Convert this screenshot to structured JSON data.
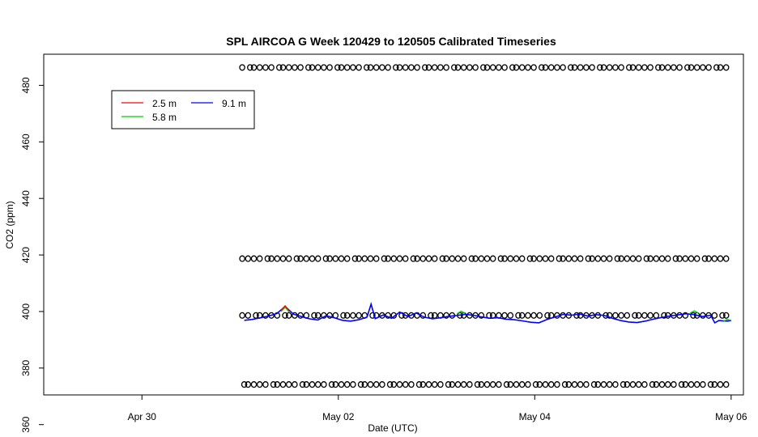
{
  "chart_data": {
    "type": "line",
    "title": "SPL AIRCOA G  Week 120429 to 120505  Calibrated Timeseries",
    "xlabel": "Date (UTC)",
    "ylabel": "CO2 (ppm)",
    "x_ticks": [
      {
        "date": "2012-04-30",
        "label": "Apr 30"
      },
      {
        "date": "2012-05-02",
        "label": "May 02"
      },
      {
        "date": "2012-05-04",
        "label": "May 04"
      },
      {
        "date": "2012-05-06",
        "label": "May 06"
      }
    ],
    "y_ticks": [
      360,
      380,
      400,
      420,
      440,
      460,
      480
    ],
    "xlim": [
      "2012-04-29T00:00",
      "2012-05-06T03:00"
    ],
    "ylim": [
      370.5,
      491
    ],
    "grid": false,
    "legend": {
      "placement": "top-left",
      "entries": [
        {
          "name": "2.5 m",
          "color": "#ff0000"
        },
        {
          "name": "5.8 m",
          "color": "#00cc00"
        },
        {
          "name": "9.1 m",
          "color": "#0000ff"
        }
      ]
    },
    "series": [
      {
        "name": "9.1 m",
        "color": "#0000ff",
        "points": [
          [
            "2012-05-01T01:00",
            396.9
          ],
          [
            "2012-05-01T03:00",
            397.2
          ],
          [
            "2012-05-01T05:00",
            397.8
          ],
          [
            "2012-05-01T07:00",
            398.4
          ],
          [
            "2012-05-01T09:00",
            399.3
          ],
          [
            "2012-05-01T11:00",
            401.8
          ],
          [
            "2012-05-01T13:00",
            399.1
          ],
          [
            "2012-05-01T15:00",
            398.2
          ],
          [
            "2012-05-01T17:00",
            397.4
          ],
          [
            "2012-05-01T19:00",
            397.0
          ],
          [
            "2012-05-01T21:00",
            398.5
          ],
          [
            "2012-05-01T23:00",
            397.8
          ],
          [
            "2012-05-02T01:00",
            396.9
          ],
          [
            "2012-05-02T03:00",
            396.6
          ],
          [
            "2012-05-02T05:00",
            397.1
          ],
          [
            "2012-05-02T07:00",
            398.0
          ],
          [
            "2012-05-02T08:00",
            402.6
          ],
          [
            "2012-05-02T09:00",
            397.5
          ],
          [
            "2012-05-02T11:00",
            398.8
          ],
          [
            "2012-05-02T13:00",
            397.6
          ],
          [
            "2012-05-02T15:00",
            399.8
          ],
          [
            "2012-05-02T17:00",
            398.2
          ],
          [
            "2012-05-02T19:00",
            399.5
          ],
          [
            "2012-05-02T21:00",
            398.0
          ],
          [
            "2012-05-02T23:00",
            397.4
          ],
          [
            "2012-05-03T01:00",
            397.8
          ],
          [
            "2012-05-03T03:00",
            398.3
          ],
          [
            "2012-05-03T05:00",
            398.6
          ],
          [
            "2012-05-03T07:00",
            399.0
          ],
          [
            "2012-05-03T09:00",
            398.7
          ],
          [
            "2012-05-03T11:00",
            398.1
          ],
          [
            "2012-05-03T13:00",
            397.6
          ],
          [
            "2012-05-03T15:00",
            397.8
          ],
          [
            "2012-05-03T17:00",
            397.3
          ],
          [
            "2012-05-03T19:00",
            397.1
          ],
          [
            "2012-05-03T21:00",
            396.7
          ],
          [
            "2012-05-03T23:00",
            396.2
          ],
          [
            "2012-05-04T01:00",
            396.0
          ],
          [
            "2012-05-04T03:00",
            397.2
          ],
          [
            "2012-05-04T05:00",
            398.1
          ],
          [
            "2012-05-04T07:00",
            399.0
          ],
          [
            "2012-05-04T09:00",
            398.7
          ],
          [
            "2012-05-04T11:00",
            399.1
          ],
          [
            "2012-05-04T13:00",
            398.4
          ],
          [
            "2012-05-04T15:00",
            398.9
          ],
          [
            "2012-05-04T17:00",
            398.6
          ],
          [
            "2012-05-04T19:00",
            397.6
          ],
          [
            "2012-05-04T21:00",
            396.8
          ],
          [
            "2012-05-04T23:00",
            396.3
          ],
          [
            "2012-05-05T01:00",
            396.1
          ],
          [
            "2012-05-05T03:00",
            396.6
          ],
          [
            "2012-05-05T05:00",
            397.3
          ],
          [
            "2012-05-05T07:00",
            397.9
          ],
          [
            "2012-05-05T09:00",
            398.4
          ],
          [
            "2012-05-05T11:00",
            398.8
          ],
          [
            "2012-05-05T13:00",
            399.2
          ],
          [
            "2012-05-05T15:00",
            398.9
          ],
          [
            "2012-05-05T17:00",
            398.2
          ],
          [
            "2012-05-05T19:00",
            398.7
          ],
          [
            "2012-05-05T20:00",
            396.0
          ],
          [
            "2012-05-05T21:00",
            396.8
          ],
          [
            "2012-05-05T23:00",
            396.6
          ],
          [
            "2012-05-06T00:00",
            396.8
          ]
        ]
      },
      {
        "name": "5.8 m",
        "color": "#00cc00",
        "points": [
          [
            "2012-05-01T10:00",
            400.0
          ],
          [
            "2012-05-01T11:00",
            401.5
          ],
          [
            "2012-05-01T12:00",
            399.8
          ],
          [
            "2012-05-03T05:00",
            399.2
          ],
          [
            "2012-05-03T06:00",
            400.1
          ],
          [
            "2012-05-03T07:00",
            399.3
          ],
          [
            "2012-05-05T14:00",
            399.5
          ],
          [
            "2012-05-05T15:00",
            400.2
          ],
          [
            "2012-05-05T16:00",
            399.4
          ],
          [
            "2012-05-05T22:00",
            396.4
          ],
          [
            "2012-05-05T23:00",
            397.2
          ],
          [
            "2012-05-06T00:00",
            396.9
          ]
        ]
      },
      {
        "name": "2.5 m",
        "color": "#ff0000",
        "points": [
          [
            "2012-05-01T10:00",
            400.5
          ],
          [
            "2012-05-01T11:00",
            402.0
          ],
          [
            "2012-05-01T12:00",
            400.2
          ]
        ]
      }
    ],
    "calibration_levels": [
      374.2,
      398.6,
      418.7,
      486.3
    ],
    "calibration_range": [
      "2012-05-01T00:30",
      "2012-05-06T00:00"
    ],
    "calibration_marker": "o"
  }
}
